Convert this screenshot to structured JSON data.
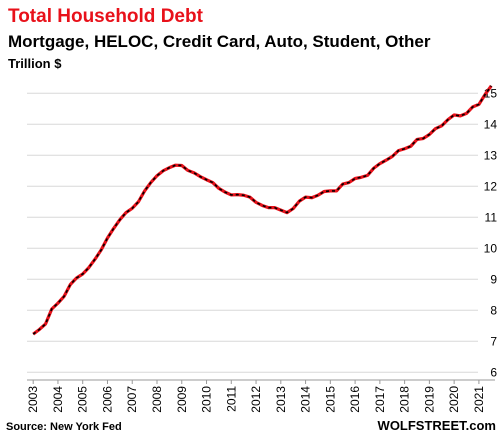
{
  "chart_data": {
    "type": "line",
    "title": "Total Household Debt",
    "subtitle": "Mortgage, HELOC, Credit Card, Auto, Student, Other",
    "y_label": "Trillion $",
    "source": "Source: New York Fed",
    "credit": "WOLFSTREET.com",
    "x": [
      2003,
      2003.25,
      2003.5,
      2003.75,
      2004,
      2004.25,
      2004.5,
      2004.75,
      2005,
      2005.25,
      2005.5,
      2005.75,
      2006,
      2006.25,
      2006.5,
      2006.75,
      2007,
      2007.25,
      2007.5,
      2007.75,
      2008,
      2008.25,
      2008.5,
      2008.75,
      2009,
      2009.25,
      2009.5,
      2009.75,
      2010,
      2010.25,
      2010.5,
      2010.75,
      2011,
      2011.25,
      2011.5,
      2011.75,
      2012,
      2012.25,
      2012.5,
      2012.75,
      2013,
      2013.25,
      2013.5,
      2013.75,
      2014,
      2014.25,
      2014.5,
      2014.75,
      2015,
      2015.25,
      2015.5,
      2015.75,
      2016,
      2016.25,
      2016.5,
      2016.75,
      2017,
      2017.25,
      2017.5,
      2017.75,
      2018,
      2018.25,
      2018.5,
      2018.75,
      2019,
      2019.25,
      2019.5,
      2019.75,
      2020,
      2020.25,
      2020.5,
      2020.75,
      2021,
      2021.25,
      2021.5
    ],
    "series": [
      {
        "name": "Total Household Debt",
        "color": "#e8111a",
        "values": [
          7.23,
          7.38,
          7.56,
          8.04,
          8.23,
          8.45,
          8.83,
          9.04,
          9.17,
          9.38,
          9.65,
          9.95,
          10.33,
          10.64,
          10.92,
          11.15,
          11.29,
          11.5,
          11.85,
          12.12,
          12.34,
          12.5,
          12.6,
          12.68,
          12.67,
          12.51,
          12.43,
          12.31,
          12.21,
          12.12,
          11.93,
          11.81,
          11.72,
          11.73,
          11.71,
          11.65,
          11.48,
          11.38,
          11.31,
          11.31,
          11.23,
          11.15,
          11.28,
          11.52,
          11.65,
          11.63,
          11.71,
          11.83,
          11.85,
          11.85,
          12.07,
          12.12,
          12.25,
          12.29,
          12.35,
          12.58,
          12.73,
          12.84,
          12.96,
          13.15,
          13.21,
          13.29,
          13.51,
          13.54,
          13.67,
          13.86,
          13.95,
          14.15,
          14.3,
          14.27,
          14.35,
          14.56,
          14.64,
          14.96,
          15.24
        ]
      }
    ],
    "xlim": [
      2002.75,
      2021.65
    ],
    "xticks": [
      2003,
      2004,
      2005,
      2006,
      2007,
      2008,
      2009,
      2010,
      2011,
      2012,
      2013,
      2014,
      2015,
      2016,
      2017,
      2018,
      2019,
      2020,
      2021
    ],
    "ylim": [
      5.75,
      15.75
    ],
    "yticks": [
      6,
      7,
      8,
      9,
      10,
      11,
      12,
      13,
      14,
      15
    ],
    "grid": true
  }
}
